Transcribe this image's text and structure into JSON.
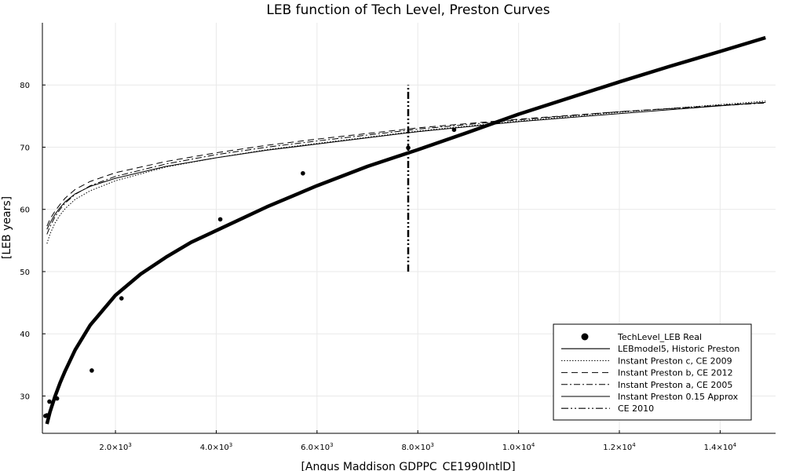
{
  "chart_data": {
    "type": "line",
    "title": "LEB function of Tech Level, Preston Curves",
    "xlabel": "[Angus Maddison GDPPC_CE1990IntlD]",
    "ylabel": "[LEB years]",
    "xlim": [
      550,
      15100
    ],
    "ylim": [
      24,
      90
    ],
    "grid": true,
    "legend_position": "bottom-right",
    "x_ticks": [
      {
        "value": 2000,
        "mant": "2.0×10",
        "exp": "3"
      },
      {
        "value": 4000,
        "mant": "4.0×10",
        "exp": "3"
      },
      {
        "value": 6000,
        "mant": "6.0×10",
        "exp": "3"
      },
      {
        "value": 8000,
        "mant": "8.0×10",
        "exp": "3"
      },
      {
        "value": 10000,
        "mant": "1.0×10",
        "exp": "4"
      },
      {
        "value": 12000,
        "mant": "1.2×10",
        "exp": "4"
      },
      {
        "value": 14000,
        "mant": "1.4×10",
        "exp": "4"
      }
    ],
    "y_ticks": [
      30,
      40,
      50,
      60,
      70,
      80
    ],
    "series": [
      {
        "name": "TechLevel_LEB Real",
        "kind": "scatter",
        "points": [
          [
            610,
            26.8
          ],
          [
            640,
            26.9
          ],
          [
            690,
            29.1
          ],
          [
            840,
            29.6
          ],
          [
            1530,
            34.1
          ],
          [
            2120,
            45.7
          ],
          [
            4080,
            58.4
          ],
          [
            5720,
            65.8
          ],
          [
            7810,
            69.9
          ],
          [
            8720,
            72.8
          ]
        ]
      },
      {
        "name": "LEBmodel5, Historic Preston",
        "kind": "line",
        "stroke_width": 4.5,
        "dash": "",
        "points": [
          [
            640,
            25.5
          ],
          [
            700,
            27.4
          ],
          [
            800,
            29.9
          ],
          [
            900,
            32.1
          ],
          [
            1000,
            34.0
          ],
          [
            1200,
            37.4
          ],
          [
            1500,
            41.4
          ],
          [
            2000,
            46.2
          ],
          [
            2500,
            49.6
          ],
          [
            3000,
            52.3
          ],
          [
            3500,
            54.7
          ],
          [
            4000,
            56.6
          ],
          [
            5000,
            60.4
          ],
          [
            6000,
            63.8
          ],
          [
            7000,
            66.9
          ],
          [
            8000,
            69.6
          ],
          [
            9000,
            72.4
          ],
          [
            10000,
            75.3
          ],
          [
            11000,
            77.9
          ],
          [
            12000,
            80.5
          ],
          [
            13000,
            83.0
          ],
          [
            14000,
            85.4
          ],
          [
            14900,
            87.6
          ]
        ]
      },
      {
        "name": "Instant Preston c, CE 2009",
        "kind": "line",
        "stroke_width": 1,
        "dash": "1.5,2",
        "points": [
          [
            640,
            54.5
          ],
          [
            700,
            56.0
          ],
          [
            800,
            57.8
          ],
          [
            900,
            59.1
          ],
          [
            1000,
            60.1
          ],
          [
            1200,
            61.6
          ],
          [
            1500,
            63.0
          ],
          [
            2000,
            64.6
          ],
          [
            3000,
            66.8
          ],
          [
            4000,
            68.3
          ],
          [
            5000,
            69.6
          ],
          [
            6000,
            70.6
          ],
          [
            8000,
            72.6
          ],
          [
            10000,
            74.2
          ],
          [
            12000,
            75.6
          ],
          [
            14900,
            77.4
          ]
        ]
      },
      {
        "name": "Instant Preston b, CE 2012",
        "kind": "line",
        "stroke_width": 1,
        "dash": "8,5",
        "points": [
          [
            640,
            57.3
          ],
          [
            700,
            58.4
          ],
          [
            800,
            59.7
          ],
          [
            900,
            60.8
          ],
          [
            1000,
            61.8
          ],
          [
            1200,
            63.2
          ],
          [
            1500,
            64.5
          ],
          [
            2000,
            65.9
          ],
          [
            3000,
            67.7
          ],
          [
            4000,
            69.1
          ],
          [
            5000,
            70.3
          ],
          [
            6000,
            71.3
          ],
          [
            8000,
            73.1
          ],
          [
            10000,
            74.5
          ],
          [
            12000,
            75.7
          ],
          [
            14900,
            77.2
          ]
        ]
      },
      {
        "name": "Instant Preston a, CE 2005",
        "kind": "line",
        "stroke_width": 1,
        "dash": "8,3,2,3",
        "points": [
          [
            640,
            56.0
          ],
          [
            700,
            57.2
          ],
          [
            800,
            58.8
          ],
          [
            900,
            60.0
          ],
          [
            1000,
            61.0
          ],
          [
            1200,
            62.4
          ],
          [
            1500,
            63.8
          ],
          [
            2000,
            65.3
          ],
          [
            3000,
            67.3
          ],
          [
            4000,
            68.8
          ],
          [
            5000,
            70.0
          ],
          [
            6000,
            71.0
          ],
          [
            8000,
            72.9
          ],
          [
            10000,
            74.4
          ],
          [
            12000,
            75.7
          ],
          [
            14900,
            77.1
          ]
        ]
      },
      {
        "name": "Instant Preston 0.15 Approx",
        "kind": "line",
        "stroke_width": 1,
        "dash": "",
        "points": [
          [
            640,
            56.8
          ],
          [
            700,
            57.8
          ],
          [
            800,
            59.2
          ],
          [
            900,
            60.3
          ],
          [
            1000,
            61.2
          ],
          [
            1200,
            62.5
          ],
          [
            1500,
            63.7
          ],
          [
            2000,
            65.0
          ],
          [
            3000,
            66.9
          ],
          [
            4000,
            68.3
          ],
          [
            5000,
            69.5
          ],
          [
            6000,
            70.5
          ],
          [
            8000,
            72.5
          ],
          [
            10000,
            74.1
          ],
          [
            12000,
            75.4
          ],
          [
            14900,
            77.2
          ]
        ]
      },
      {
        "name": "CE 2010",
        "kind": "line",
        "stroke_width": 2.5,
        "dash": "9,3,2,3,2,3",
        "points": [
          [
            7810,
            50
          ],
          [
            7810,
            80
          ]
        ]
      }
    ]
  }
}
